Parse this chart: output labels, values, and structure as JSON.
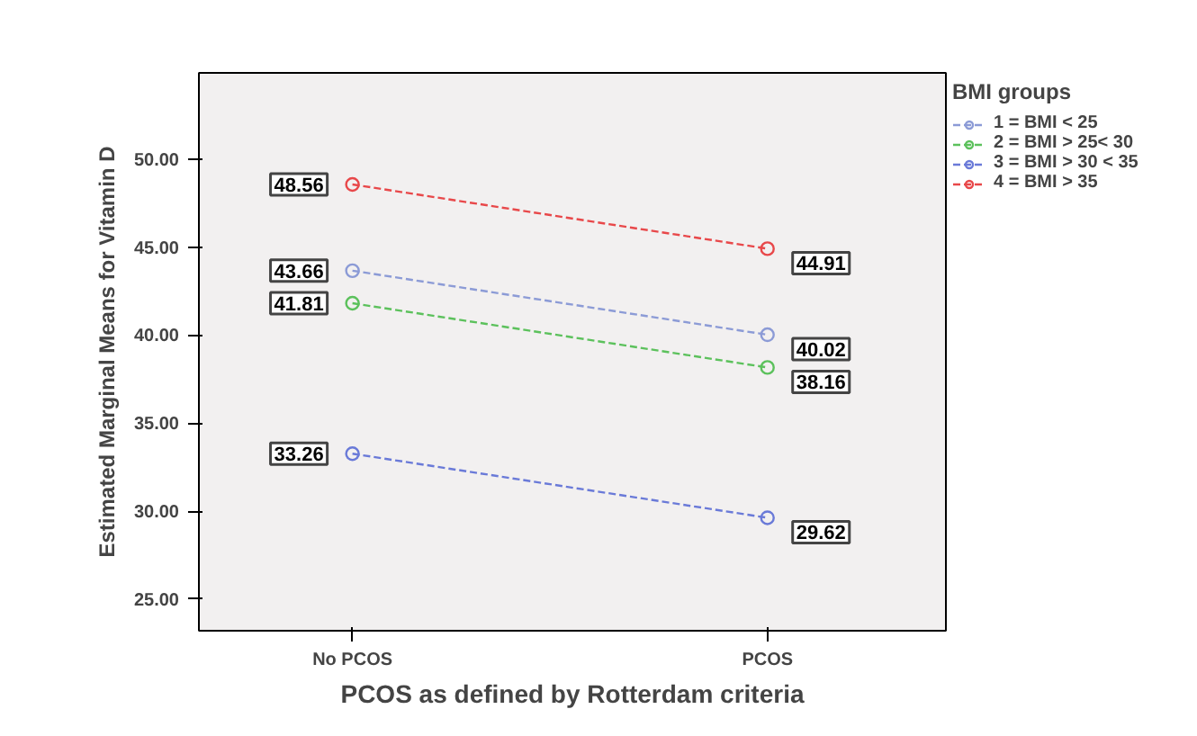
{
  "chart_data": {
    "type": "line",
    "xlabel": "PCOS as defined by Rotterdam criteria",
    "ylabel": "Estimated Marginal Means for Vitamin D",
    "legend_title": "BMI groups",
    "categories": [
      "No PCOS",
      "PCOS"
    ],
    "series": [
      {
        "name": "1 = BMI < 25",
        "color": "#8c9bd6",
        "values": [
          43.66,
          40.02
        ]
      },
      {
        "name": "2 = BMI > 25< 30",
        "color": "#5cc15c",
        "values": [
          41.81,
          38.16
        ]
      },
      {
        "name": "3 = BMI > 30 < 35",
        "color": "#6a7ad8",
        "values": [
          33.26,
          29.62
        ]
      },
      {
        "name": "4 = BMI > 35",
        "color": "#e8484a",
        "values": [
          48.56,
          44.91
        ]
      }
    ],
    "ylim": [
      23.2,
      54.9
    ],
    "yticks": [
      {
        "value": 25,
        "label": "25.00"
      },
      {
        "value": 30,
        "label": "30.00"
      },
      {
        "value": 35,
        "label": "35.00"
      },
      {
        "value": 40,
        "label": "40.00"
      },
      {
        "value": 45,
        "label": "45.00"
      },
      {
        "value": 50,
        "label": "50.00"
      }
    ],
    "data_labels": true,
    "grid": false,
    "legend": "right",
    "marker": "circle",
    "line_style": "dashed"
  }
}
